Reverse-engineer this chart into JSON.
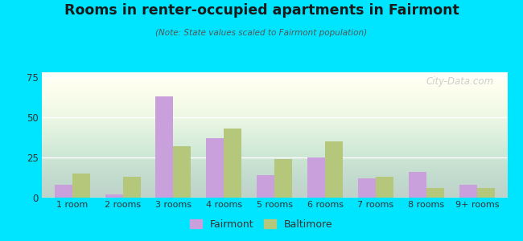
{
  "title": "Rooms in renter-occupied apartments in Fairmont",
  "subtitle": "(Note: State values scaled to Fairmont population)",
  "categories": [
    "1 room",
    "2 rooms",
    "3 rooms",
    "4 rooms",
    "5 rooms",
    "6 rooms",
    "7 rooms",
    "8 rooms",
    "9+ rooms"
  ],
  "fairmont_values": [
    8,
    2,
    63,
    37,
    14,
    25,
    12,
    16,
    8
  ],
  "baltimore_values": [
    15,
    13,
    32,
    43,
    24,
    35,
    13,
    6,
    6
  ],
  "fairmont_color": "#c9a0dc",
  "baltimore_color": "#b5c77a",
  "background_outer": "#00e5ff",
  "ylim": [
    0,
    78
  ],
  "yticks": [
    0,
    25,
    50,
    75
  ],
  "bar_width": 0.35,
  "legend_fairmont": "Fairmont",
  "legend_baltimore": "Baltimore",
  "watermark": "City-Data.com"
}
